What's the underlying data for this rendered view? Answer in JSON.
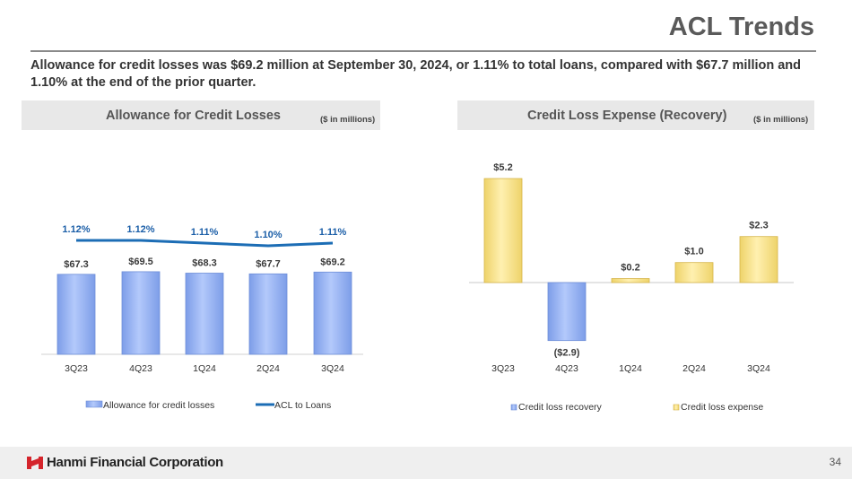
{
  "header": {
    "title": "ACL Trends",
    "subtitle": "Allowance for credit losses was $69.2 million at September 30, 2024, or 1.11% to total loans, compared with $67.7 million and 1.10% at the end of the prior quarter."
  },
  "left_panel": {
    "title": "Allowance for Credit Losses",
    "units": "($ in millions)"
  },
  "right_panel": {
    "title": "Credit Loss Expense (Recovery)",
    "units": "($ in millions)"
  },
  "colors": {
    "bar_blue": "#9db8f5",
    "bar_yellow": "#f8e79a",
    "line_blue": "#1c6db5",
    "pct_text": "#1c5fa8",
    "label_text": "#3a3a3a"
  },
  "chart_data": [
    {
      "type": "bar",
      "title": "Allowance for Credit Losses",
      "categories": [
        "3Q23",
        "4Q23",
        "1Q24",
        "2Q24",
        "3Q24"
      ],
      "series": [
        {
          "name": "Allowance for credit losses",
          "values": [
            67.3,
            69.5,
            68.3,
            67.7,
            69.2
          ],
          "labels": [
            "$67.3",
            "$69.5",
            "$68.3",
            "$67.7",
            "$69.2"
          ]
        },
        {
          "name": "ACL to Loans",
          "type": "line",
          "values": [
            1.12,
            1.12,
            1.11,
            1.1,
            1.11
          ],
          "labels": [
            "1.12%",
            "1.12%",
            "1.11%",
            "1.10%",
            "1.11%"
          ]
        }
      ],
      "legend": [
        "Allowance for credit losses",
        "ACL to Loans"
      ],
      "legend_position": "bottom"
    },
    {
      "type": "bar",
      "title": "Credit Loss Expense (Recovery)",
      "categories": [
        "3Q23",
        "4Q23",
        "1Q24",
        "2Q24",
        "3Q24"
      ],
      "values": [
        5.2,
        -2.9,
        0.2,
        1.0,
        2.3
      ],
      "labels": [
        "$5.2",
        "($2.9)",
        "$0.2",
        "$1.0",
        "$2.3"
      ],
      "legend": [
        "Credit loss recovery",
        "Credit loss expense"
      ],
      "legend_position": "bottom"
    }
  ],
  "footer": {
    "company": "Hanmi Financial Corporation",
    "page_number": "34"
  }
}
